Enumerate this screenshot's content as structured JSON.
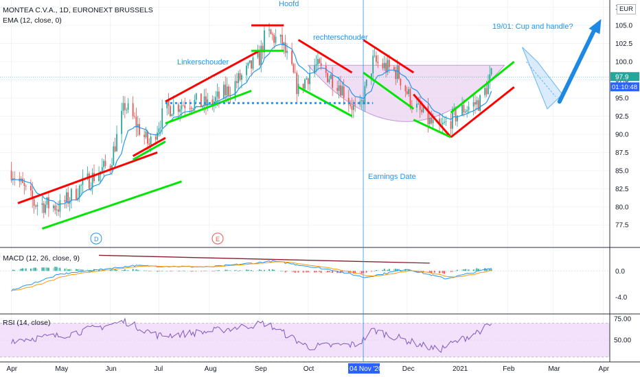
{
  "legend": {
    "symbol_line": "MONTEA C.V.A., 1D, EURONEXT BRUSSELS",
    "ema_line": "EMA (12, close, 0)",
    "macd_line": "MACD (12, 26, close, 9)",
    "rsi_line": "RSI (14, close)",
    "currency": "EUR"
  },
  "annotations": {
    "hoofd": "Hoofd",
    "linkerschouder": "Linkerschouder",
    "rechterschouder": "rechterschouder",
    "cup": "19/01: Cup and handle?",
    "earnings": "Earnings Date",
    "div_badge": "D",
    "earn_badge": "E"
  },
  "price_axis": {
    "ticks": [
      "107.5",
      "105.0",
      "102.5",
      "100.0",
      "97.5",
      "95.0",
      "92.5",
      "90.0",
      "87.5",
      "85.0",
      "82.5",
      "80.0",
      "77.5"
    ],
    "last_price": "97.9",
    "countdown": "01:10:48",
    "color_last": "#26a69a",
    "color_timer": "#2962ff"
  },
  "macd_axis": {
    "ticks": [
      "0.0",
      "-4.0"
    ]
  },
  "rsi_axis": {
    "ticks": [
      "75.00",
      "50.00"
    ]
  },
  "time_axis": {
    "labels": [
      "Apr",
      "May",
      "Jun",
      "Jul",
      "Aug",
      "Sep",
      "Oct",
      "Dec",
      "2021",
      "Feb",
      "Mar",
      "Apr"
    ],
    "highlight": "04 Nov '20"
  },
  "colors": {
    "up": "#26a69a",
    "down": "#ef5350",
    "ema": "#2196f3",
    "green_line": "#00e600",
    "red_line": "#ff0000",
    "dotted": "#2196f3",
    "cup_fill": "#e9d3f0",
    "rsi_fill": "#f3e1fb",
    "rsi_line": "#7e57c2",
    "signal": "#ff9800",
    "arrow": "#1e88e5"
  },
  "chart_data": [
    {
      "type": "candlestick",
      "title": "MONTEA C.V.A., 1D, EURONEXT BRUSSELS",
      "ylim": [
        74.5,
        108.5
      ],
      "x_range": [
        "2020-03-25",
        "2021-04-05"
      ],
      "key_levels": {
        "neckline": 94.3,
        "head_high": 107.0,
        "lows": [
          75.6,
          89.6
        ]
      },
      "series": [
        {
          "name": "Close (approx.)",
          "points": [
            [
              "2020-04-01",
              85.0
            ],
            [
              "2020-04-15",
              80.5
            ],
            [
              "2020-05-01",
              80.0
            ],
            [
              "2020-05-15",
              83.0
            ],
            [
              "2020-06-01",
              86.0
            ],
            [
              "2020-06-10",
              94.0
            ],
            [
              "2020-06-25",
              88.5
            ],
            [
              "2020-07-05",
              93.5
            ],
            [
              "2020-07-20",
              94.5
            ],
            [
              "2020-08-01",
              94.0
            ],
            [
              "2020-08-15",
              96.5
            ],
            [
              "2020-09-01",
              100.5
            ],
            [
              "2020-09-05",
              104.0
            ],
            [
              "2020-09-15",
              102.5
            ],
            [
              "2020-09-25",
              96.0
            ],
            [
              "2020-10-05",
              99.5
            ],
            [
              "2020-10-20",
              97.0
            ],
            [
              "2020-11-01",
              92.5
            ],
            [
              "2020-11-10",
              100.0
            ],
            [
              "2020-11-25",
              98.5
            ],
            [
              "2020-12-05",
              94.0
            ],
            [
              "2020-12-20",
              90.5
            ],
            [
              "2021-01-05",
              93.5
            ],
            [
              "2021-01-15",
              94.5
            ],
            [
              "2021-01-22",
              97.9
            ]
          ]
        },
        {
          "name": "EMA (12, close, 0)",
          "values_follow_close": true
        }
      ]
    },
    {
      "type": "line",
      "title": "MACD (12, 26, close, 9)",
      "ylim": [
        -6.5,
        3.5
      ],
      "series": [
        {
          "name": "MACD",
          "points": [
            [
              "2020-04-01",
              -3.0
            ],
            [
              "2020-05-01",
              -0.5
            ],
            [
              "2020-06-15",
              0.8
            ],
            [
              "2020-08-01",
              0.6
            ],
            [
              "2020-09-10",
              1.5
            ],
            [
              "2020-10-15",
              0.2
            ],
            [
              "2020-11-05",
              -1.0
            ],
            [
              "2020-12-01",
              0.3
            ],
            [
              "2020-12-25",
              -1.2
            ],
            [
              "2021-01-22",
              0.4
            ]
          ]
        }
      ]
    },
    {
      "type": "line",
      "title": "RSI (14, close)",
      "ylim": [
        25,
        80
      ],
      "bands": [
        30,
        70
      ],
      "series": [
        {
          "name": "RSI",
          "points": [
            [
              "2020-04-01",
              50
            ],
            [
              "2020-05-01",
              55
            ],
            [
              "2020-06-10",
              72
            ],
            [
              "2020-07-01",
              55
            ],
            [
              "2020-08-01",
              60
            ],
            [
              "2020-09-05",
              70
            ],
            [
              "2020-10-01",
              42
            ],
            [
              "2020-11-01",
              45
            ],
            [
              "2020-11-10",
              62
            ],
            [
              "2020-12-20",
              38
            ],
            [
              "2021-01-05",
              52
            ],
            [
              "2021-01-22",
              68
            ]
          ]
        }
      ]
    }
  ]
}
